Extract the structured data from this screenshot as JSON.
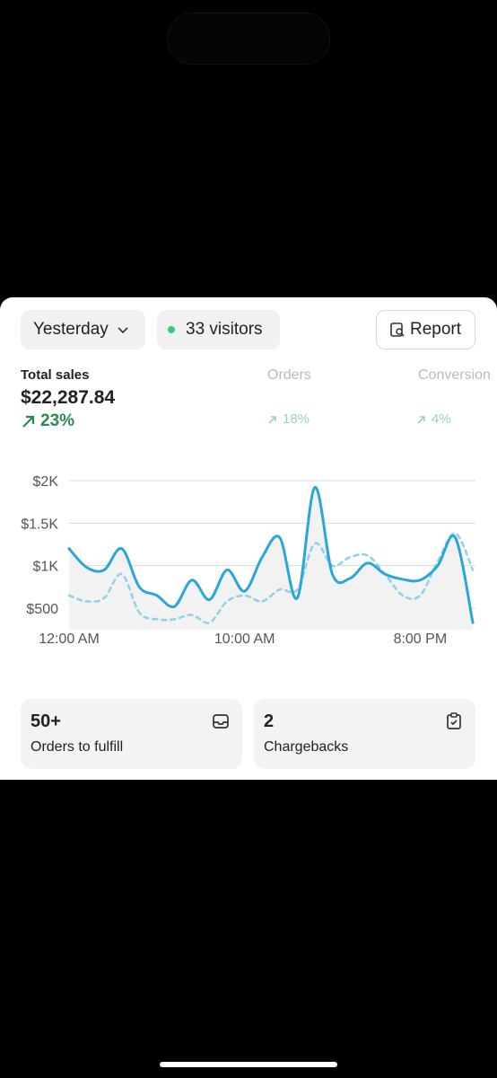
{
  "filter": {
    "label": "Yesterday"
  },
  "visitors": {
    "label": "33 visitors"
  },
  "report": {
    "label": "Report"
  },
  "metrics": [
    {
      "label": "Total sales",
      "value": "$22,287.84",
      "change": "23%"
    },
    {
      "label": "Orders",
      "change": "18%"
    },
    {
      "label": "Conversion",
      "change": "4%"
    }
  ],
  "chart_data": {
    "type": "line",
    "x": [
      0,
      1,
      2,
      3,
      4,
      5,
      6,
      7,
      8,
      9,
      10,
      11,
      12,
      13,
      14,
      15,
      16,
      17,
      18,
      19,
      20,
      21,
      22,
      23
    ],
    "series": [
      {
        "color": "#2aa6dc",
        "dashed": false,
        "fill": true,
        "values": [
          1200,
          980,
          950,
          1200,
          750,
          650,
          520,
          830,
          600,
          950,
          700,
          1100,
          1330,
          620,
          1920,
          900,
          850,
          1030,
          900,
          840,
          830,
          1000,
          1330,
          330
        ]
      },
      {
        "color": "#8fd0ea",
        "dashed": true,
        "fill": false,
        "values": [
          650,
          580,
          620,
          900,
          450,
          370,
          370,
          420,
          330,
          580,
          650,
          580,
          720,
          720,
          1260,
          1000,
          1100,
          1120,
          900,
          650,
          650,
          1050,
          1380,
          950
        ]
      }
    ],
    "xlim": [
      0,
      23.15
    ],
    "xticks": [
      {
        "value": 0,
        "label": "12:00 AM"
      },
      {
        "value": 10,
        "label": "10:00 AM"
      },
      {
        "value": 20,
        "label": "8:00 PM"
      }
    ],
    "ylim": [
      250,
      2250
    ],
    "yticks": [
      {
        "value": 500,
        "label": "$500"
      },
      {
        "value": 1000,
        "label": "$1K"
      },
      {
        "value": 1500,
        "label": "$1.5K"
      },
      {
        "value": 2000,
        "label": "$2K"
      }
    ],
    "grid": true
  },
  "cards": [
    {
      "value": "50+",
      "label": "Orders to fulfill"
    },
    {
      "value": "2",
      "label": "Chargebacks"
    }
  ]
}
